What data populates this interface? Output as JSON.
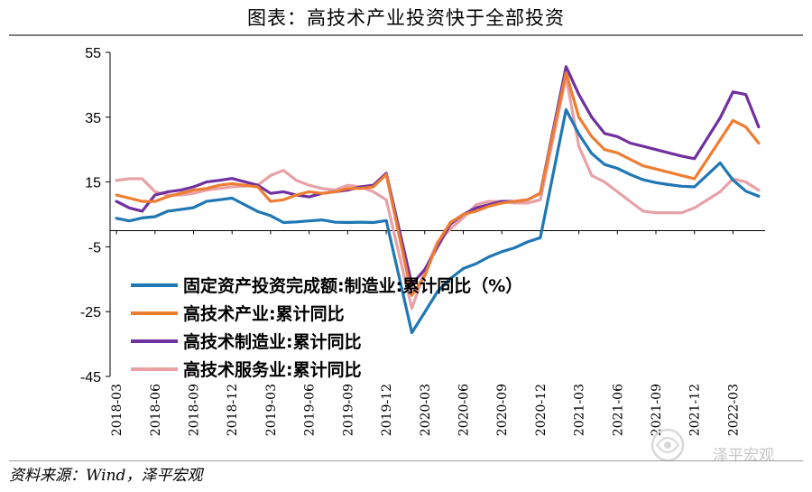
{
  "header": {
    "title": "图表：高技术产业投资快于全部投资"
  },
  "footer": {
    "source": "资料来源：Wind，泽平宏观"
  },
  "watermark": {
    "text": "泽平宏观"
  },
  "chart_data": {
    "type": "line",
    "title": "图表：高技术产业投资快于全部投资",
    "xlabel": "",
    "ylabel": "",
    "ylim": [
      -45,
      55
    ],
    "yticks": [
      55,
      35,
      15,
      -5,
      -25,
      -45
    ],
    "legend_position": "lower-left (inside plot)",
    "grid": false,
    "x": [
      "2018-03",
      "2018-04",
      "2018-05",
      "2018-06",
      "2018-07",
      "2018-08",
      "2018-09",
      "2018-10",
      "2018-11",
      "2018-12",
      "2019-01",
      "2019-02",
      "2019-03",
      "2019-04",
      "2019-05",
      "2019-06",
      "2019-07",
      "2019-08",
      "2019-09",
      "2019-10",
      "2019-11",
      "2019-12",
      "2020-01",
      "2020-02",
      "2020-03",
      "2020-04",
      "2020-05",
      "2020-06",
      "2020-07",
      "2020-08",
      "2020-09",
      "2020-10",
      "2020-11",
      "2020-12",
      "2021-01",
      "2021-02",
      "2021-03",
      "2021-04",
      "2021-05",
      "2021-06",
      "2021-07",
      "2021-08",
      "2021-09",
      "2021-10",
      "2021-11",
      "2021-12",
      "2022-01",
      "2022-02",
      "2022-03",
      "2022-04",
      "2022-05"
    ],
    "xtick_labels": [
      "2018-03",
      "2018-06",
      "2018-09",
      "2018-12",
      "2019-03",
      "2019-06",
      "2019-09",
      "2019-12",
      "2020-03",
      "2020-06",
      "2020-09",
      "2020-12",
      "2021-03",
      "2021-06",
      "2021-09",
      "2021-12",
      "2022-03"
    ],
    "series": [
      {
        "name": "固定资产投资完成额:制造业:累计同比（%）",
        "color": "#1f77b4",
        "values": [
          3.8,
          3.0,
          3.9,
          4.3,
          6.0,
          6.5,
          7.1,
          9.0,
          9.5,
          10.0,
          null,
          5.9,
          4.6,
          2.5,
          2.7,
          3.0,
          3.3,
          2.6,
          2.5,
          2.6,
          2.5,
          3.1,
          null,
          -31.5,
          -25.2,
          -18.8,
          -14.8,
          -11.7,
          -10.2,
          -8.1,
          -6.5,
          -5.3,
          -3.5,
          -2.2,
          null,
          37.3,
          29.8,
          23.8,
          20.4,
          19.2,
          17.3,
          15.7,
          14.8,
          14.2,
          13.7,
          13.5,
          null,
          20.9,
          15.6,
          12.2,
          10.6
        ]
      },
      {
        "name": "高技术产业:累计同比",
        "color": "#ed7d31",
        "values": [
          11.0,
          10.0,
          9.0,
          9.0,
          10.5,
          11.5,
          12.5,
          13.0,
          14.0,
          14.5,
          null,
          13.5,
          9.0,
          9.5,
          11.0,
          12.0,
          11.5,
          12.0,
          13.0,
          13.0,
          13.5,
          17.3,
          null,
          -20.0,
          -14.0,
          -3.8,
          2.5,
          5.0,
          6.0,
          7.5,
          8.5,
          9.0,
          9.5,
          11.5,
          null,
          48.7,
          35.0,
          29.0,
          25.0,
          24.0,
          22.0,
          20.0,
          19.0,
          18.0,
          17.0,
          16.0,
          null,
          28.0,
          34.0,
          32.0,
          27.0
        ]
      },
      {
        "name": "高技术制造业:累计同比",
        "color": "#7030a0",
        "values": [
          9.0,
          7.0,
          6.0,
          11.0,
          12.0,
          12.5,
          13.5,
          15.0,
          15.5,
          16.1,
          null,
          14.0,
          11.5,
          12.0,
          11.0,
          10.4,
          11.5,
          12.0,
          12.5,
          13.5,
          14.0,
          17.7,
          null,
          -16.6,
          -12.0,
          -5.0,
          2.0,
          5.0,
          7.0,
          8.0,
          9.0,
          9.0,
          9.5,
          11.5,
          null,
          50.6,
          42.0,
          35.0,
          30.0,
          29.0,
          27.0,
          26.0,
          25.0,
          24.0,
          23.0,
          22.2,
          null,
          34.8,
          42.8,
          42.0,
          32.0
        ]
      },
      {
        "name": "高技术服务业:累计同比",
        "color": "#e8a1a6",
        "values": [
          15.5,
          16.0,
          16.0,
          12.0,
          11.0,
          11.0,
          11.5,
          12.5,
          13.0,
          13.5,
          null,
          14.0,
          17.0,
          18.6,
          15.5,
          14.0,
          13.0,
          12.5,
          14.0,
          13.5,
          12.0,
          9.5,
          null,
          -24.0,
          -12.5,
          -3.5,
          0.5,
          4.0,
          8.0,
          9.0,
          9.0,
          8.5,
          8.5,
          9.5,
          null,
          47.5,
          26.0,
          17.0,
          15.0,
          12.0,
          9.0,
          6.0,
          5.5,
          5.5,
          5.5,
          7.0,
          null,
          12.0,
          16.0,
          15.0,
          12.5
        ]
      }
    ]
  }
}
